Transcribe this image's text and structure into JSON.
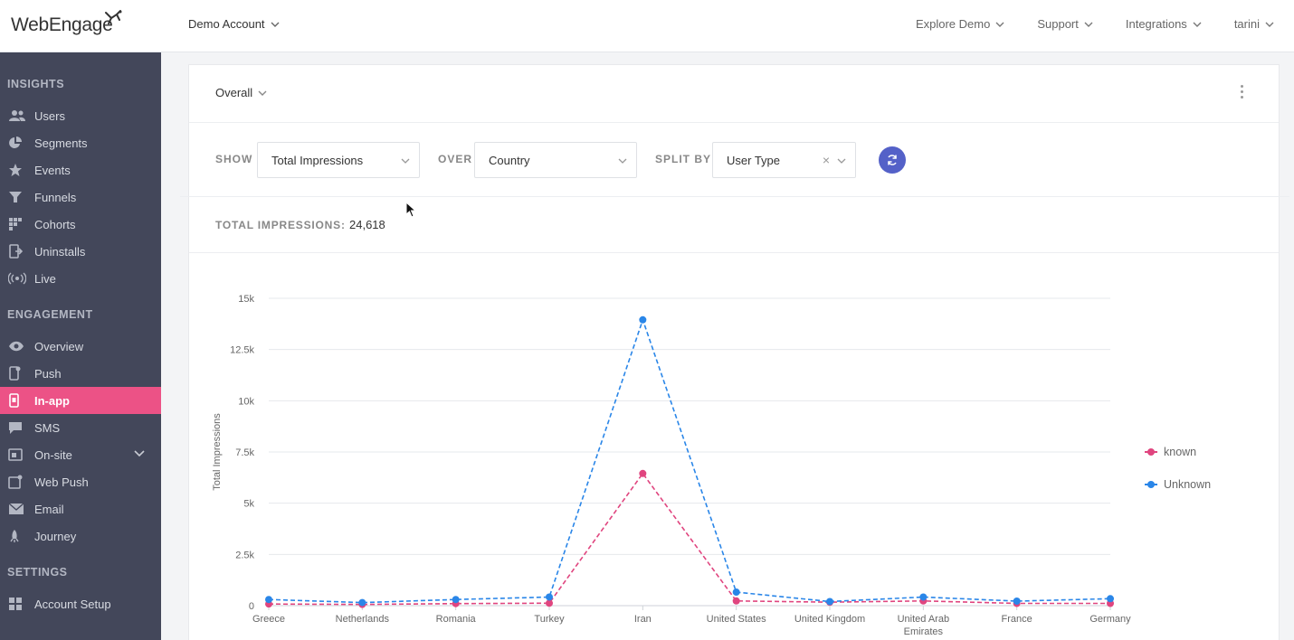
{
  "brand": {
    "logo_text": "WebEngage"
  },
  "header": {
    "account": "Demo Account",
    "nav": [
      {
        "label": "Explore Demo"
      },
      {
        "label": "Support"
      },
      {
        "label": "Integrations"
      },
      {
        "label": "tarini"
      }
    ]
  },
  "sidebar": {
    "sections": {
      "insights": "INSIGHTS",
      "engagement": "ENGAGEMENT",
      "settings": "SETTINGS"
    },
    "insights_items": [
      {
        "label": "Users",
        "icon": "users-icon"
      },
      {
        "label": "Segments",
        "icon": "pie-icon"
      },
      {
        "label": "Events",
        "icon": "star-icon"
      },
      {
        "label": "Funnels",
        "icon": "funnel-icon"
      },
      {
        "label": "Cohorts",
        "icon": "grid-icon"
      },
      {
        "label": "Uninstalls",
        "icon": "uninstall-icon"
      },
      {
        "label": "Live",
        "icon": "broadcast-icon"
      }
    ],
    "engagement_items": [
      {
        "label": "Overview",
        "icon": "eye-icon"
      },
      {
        "label": "Push",
        "icon": "mobile-icon"
      },
      {
        "label": "In-app",
        "icon": "inapp-icon",
        "active": true
      },
      {
        "label": "SMS",
        "icon": "chat-icon"
      },
      {
        "label": "On-site",
        "icon": "window-icon"
      },
      {
        "label": "Web Push",
        "icon": "webpush-icon"
      },
      {
        "label": "Email",
        "icon": "mail-icon"
      },
      {
        "label": "Journey",
        "icon": "rocket-icon"
      }
    ],
    "settings_items": [
      {
        "label": "Account Setup",
        "icon": "settings-grid-icon"
      }
    ]
  },
  "card": {
    "view": "Overall",
    "filters": {
      "show_label": "SHOW",
      "show_value": "Total Impressions",
      "over_label": "OVER",
      "over_value": "Country",
      "split_label": "SPLIT BY",
      "split_value": "User Type"
    },
    "total_label": "TOTAL IMPRESSIONS:",
    "total_value": "24,618"
  },
  "colors": {
    "known": "#e0457f",
    "unknown": "#2a86e8",
    "accent": "#ec5286",
    "refresh": "#5461c8"
  },
  "chart_data": {
    "type": "line",
    "ylabel": "Total Impressions",
    "ylim": [
      0,
      15000
    ],
    "yticks": [
      0,
      2500,
      5000,
      7500,
      10000,
      12500,
      15000
    ],
    "ytick_labels": [
      "0",
      "2.5k",
      "5k",
      "7.5k",
      "10k",
      "12.5k",
      "15k"
    ],
    "categories": [
      "Greece",
      "Netherlands",
      "Romania",
      "Turkey",
      "Iran",
      "United States",
      "United Kingdom",
      "United Arab Emirates",
      "France",
      "Germany"
    ],
    "category_lines": [
      [
        "Greece"
      ],
      [
        "Netherlands"
      ],
      [
        "Romania"
      ],
      [
        "Turkey"
      ],
      [
        "Iran"
      ],
      [
        "United States"
      ],
      [
        "United Kingdom"
      ],
      [
        "United Arab",
        "Emirates"
      ],
      [
        "France"
      ],
      [
        "Germany"
      ]
    ],
    "series": [
      {
        "name": "known",
        "color": "#e0457f",
        "values": [
          80,
          60,
          100,
          120,
          6450,
          230,
          170,
          230,
          110,
          110
        ]
      },
      {
        "name": "Unknown",
        "color": "#2a86e8",
        "values": [
          300,
          150,
          300,
          420,
          13950,
          660,
          200,
          420,
          220,
          340
        ]
      }
    ],
    "legend_position": "right",
    "grid": true
  }
}
